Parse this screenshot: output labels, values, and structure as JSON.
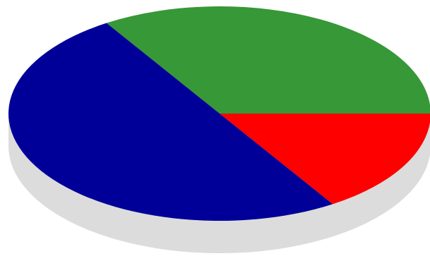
{
  "chart_data": {
    "type": "pie",
    "style": "3d-ellipse",
    "shadow_color": "#dcdcdc",
    "slices": [
      {
        "value": 34,
        "color": "#369836"
      },
      {
        "value": 16,
        "color": "#ff0000"
      },
      {
        "value": 50,
        "color": "#000099"
      }
    ]
  }
}
